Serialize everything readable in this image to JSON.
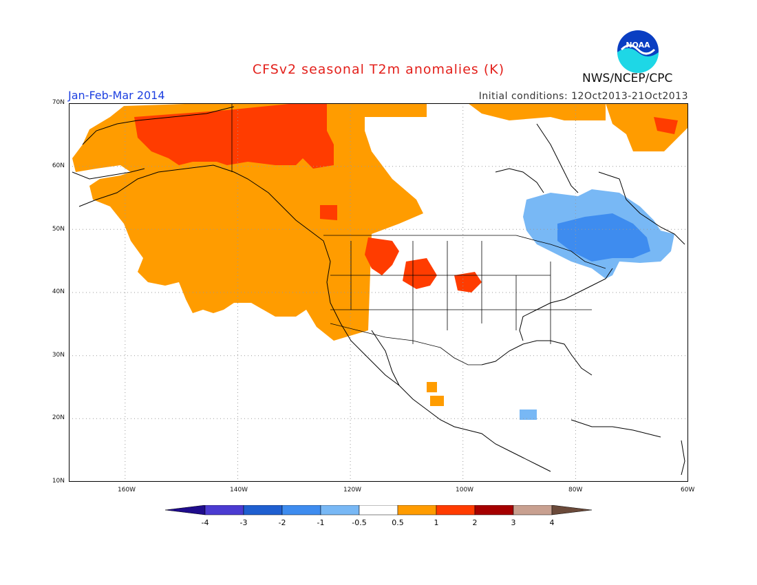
{
  "title": "CFSv2 seasonal T2m anomalies (K)",
  "period": "Jan-Feb-Mar 2014",
  "initial_conditions": "Initial conditions: 12Oct2013-21Oct2013",
  "agency": "NWS/NCEP/CPC",
  "logo_text": "NOAA",
  "map": {
    "lon_range": [
      -170,
      -60
    ],
    "lat_range": [
      10,
      70
    ],
    "x_ticks": [
      "160W",
      "140W",
      "120W",
      "100W",
      "80W",
      "60W"
    ],
    "y_ticks": [
      "70N",
      "60N",
      "50N",
      "40N",
      "30N",
      "20N",
      "10N"
    ]
  },
  "colorbar": {
    "labels": [
      "-4",
      "-3",
      "-2",
      "-1",
      "-0.5",
      "0.5",
      "1",
      "2",
      "3",
      "4"
    ],
    "colors": [
      "#1f0c8c",
      "#4b3bd1",
      "#1f5fd0",
      "#3e8cef",
      "#78b8f5",
      "#ffffff",
      "#ff9c00",
      "#ff3c00",
      "#a50000",
      "#c8a090",
      "#6b4a3a"
    ]
  }
}
